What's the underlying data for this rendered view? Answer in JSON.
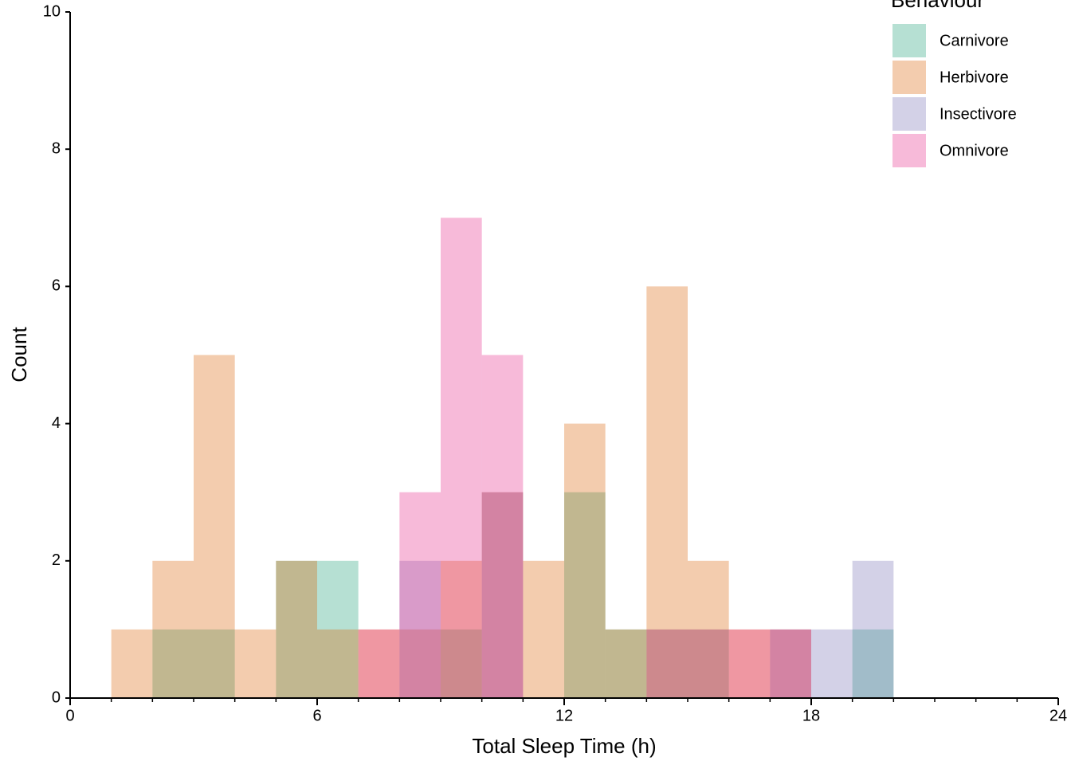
{
  "chart_data": {
    "type": "histogram",
    "x_label": "Total Sleep Time (h)",
    "y_label": "Count",
    "legend_title": "Behaviour",
    "legend_position": "top-right",
    "bins": [
      0,
      1,
      2,
      3,
      4,
      5,
      6,
      7,
      8,
      9,
      10,
      11,
      12,
      13,
      14,
      15,
      16,
      17,
      18,
      19,
      20,
      21,
      22,
      23,
      24
    ],
    "series": [
      {
        "name": "Carnivore",
        "color": "#1b9e77",
        "values": [
          0,
          0,
          1,
          1,
          0,
          2,
          2,
          0,
          0,
          1,
          0,
          0,
          3,
          1,
          1,
          1,
          0,
          0,
          0,
          1,
          0,
          0,
          0,
          0
        ]
      },
      {
        "name": "Herbivore",
        "color": "#d95f02",
        "values": [
          0,
          1,
          2,
          5,
          1,
          2,
          1,
          1,
          1,
          2,
          3,
          2,
          4,
          1,
          6,
          2,
          1,
          1,
          0,
          0,
          0,
          0,
          0,
          0
        ]
      },
      {
        "name": "Insectivore",
        "color": "#7570b3",
        "values": [
          0,
          0,
          0,
          0,
          0,
          0,
          0,
          0,
          2,
          0,
          3,
          0,
          0,
          0,
          0,
          0,
          0,
          1,
          1,
          2,
          0,
          0,
          0,
          0
        ]
      },
      {
        "name": "Omnivore",
        "color": "#e7298a",
        "values": [
          0,
          0,
          0,
          0,
          0,
          0,
          0,
          1,
          3,
          7,
          5,
          0,
          0,
          0,
          1,
          1,
          1,
          1,
          0,
          0,
          0,
          0,
          0,
          0
        ]
      }
    ],
    "opacity": 0.32,
    "xlim": [
      0,
      24
    ],
    "xticks": [
      0,
      6,
      12,
      18,
      24
    ],
    "ylim": [
      0,
      10
    ],
    "yticks": [
      0,
      2,
      4,
      6,
      8,
      10
    ]
  }
}
